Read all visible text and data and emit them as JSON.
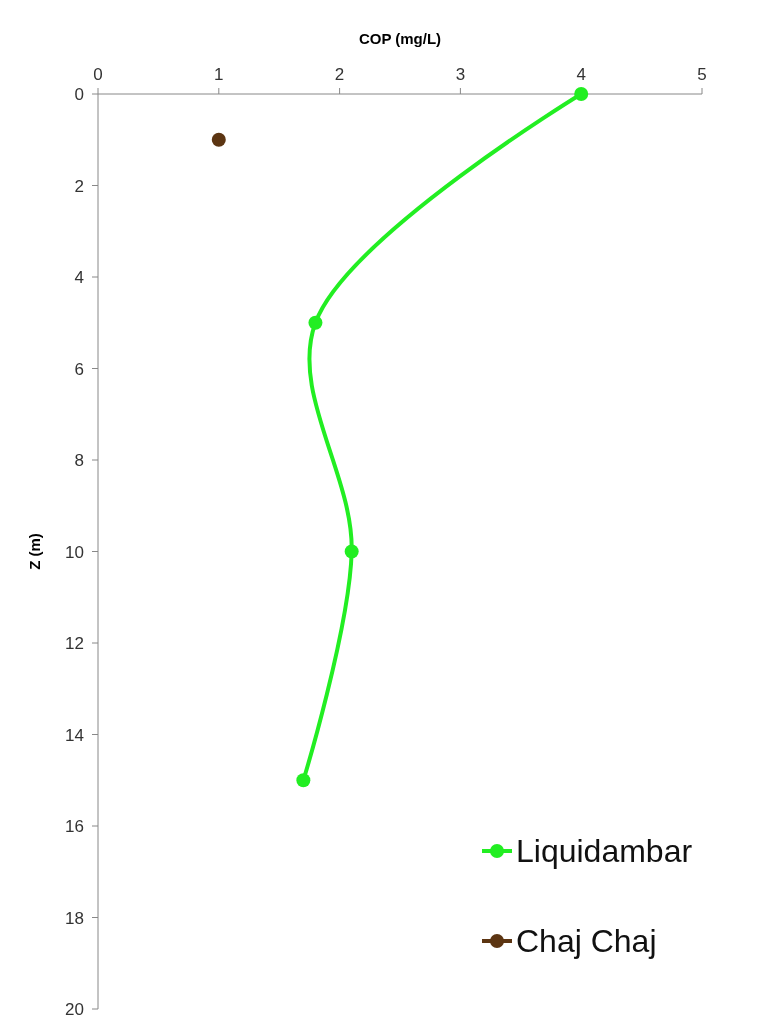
{
  "chart_data": {
    "type": "line",
    "xlabel": "COP (mg/L)",
    "ylabel": "Z (m)",
    "xlim": [
      0,
      5
    ],
    "xticks": [
      0,
      1,
      2,
      3,
      4,
      5
    ],
    "ylim": [
      20,
      0
    ],
    "yticks": [
      0,
      2,
      4,
      6,
      8,
      10,
      12,
      14,
      16,
      18,
      20
    ],
    "grid": false,
    "legend": "bottom right",
    "marker": "circle",
    "line_style": "solid",
    "series": [
      {
        "name": "Liquidambar",
        "color": "#22ee22",
        "x": [
          4,
          1.8,
          2.1,
          1.7
        ],
        "values": [
          0,
          5,
          10,
          15
        ]
      },
      {
        "name": "Chaj Chaj",
        "color": "#5c3512",
        "x": [
          1
        ],
        "values": [
          1
        ]
      }
    ]
  }
}
